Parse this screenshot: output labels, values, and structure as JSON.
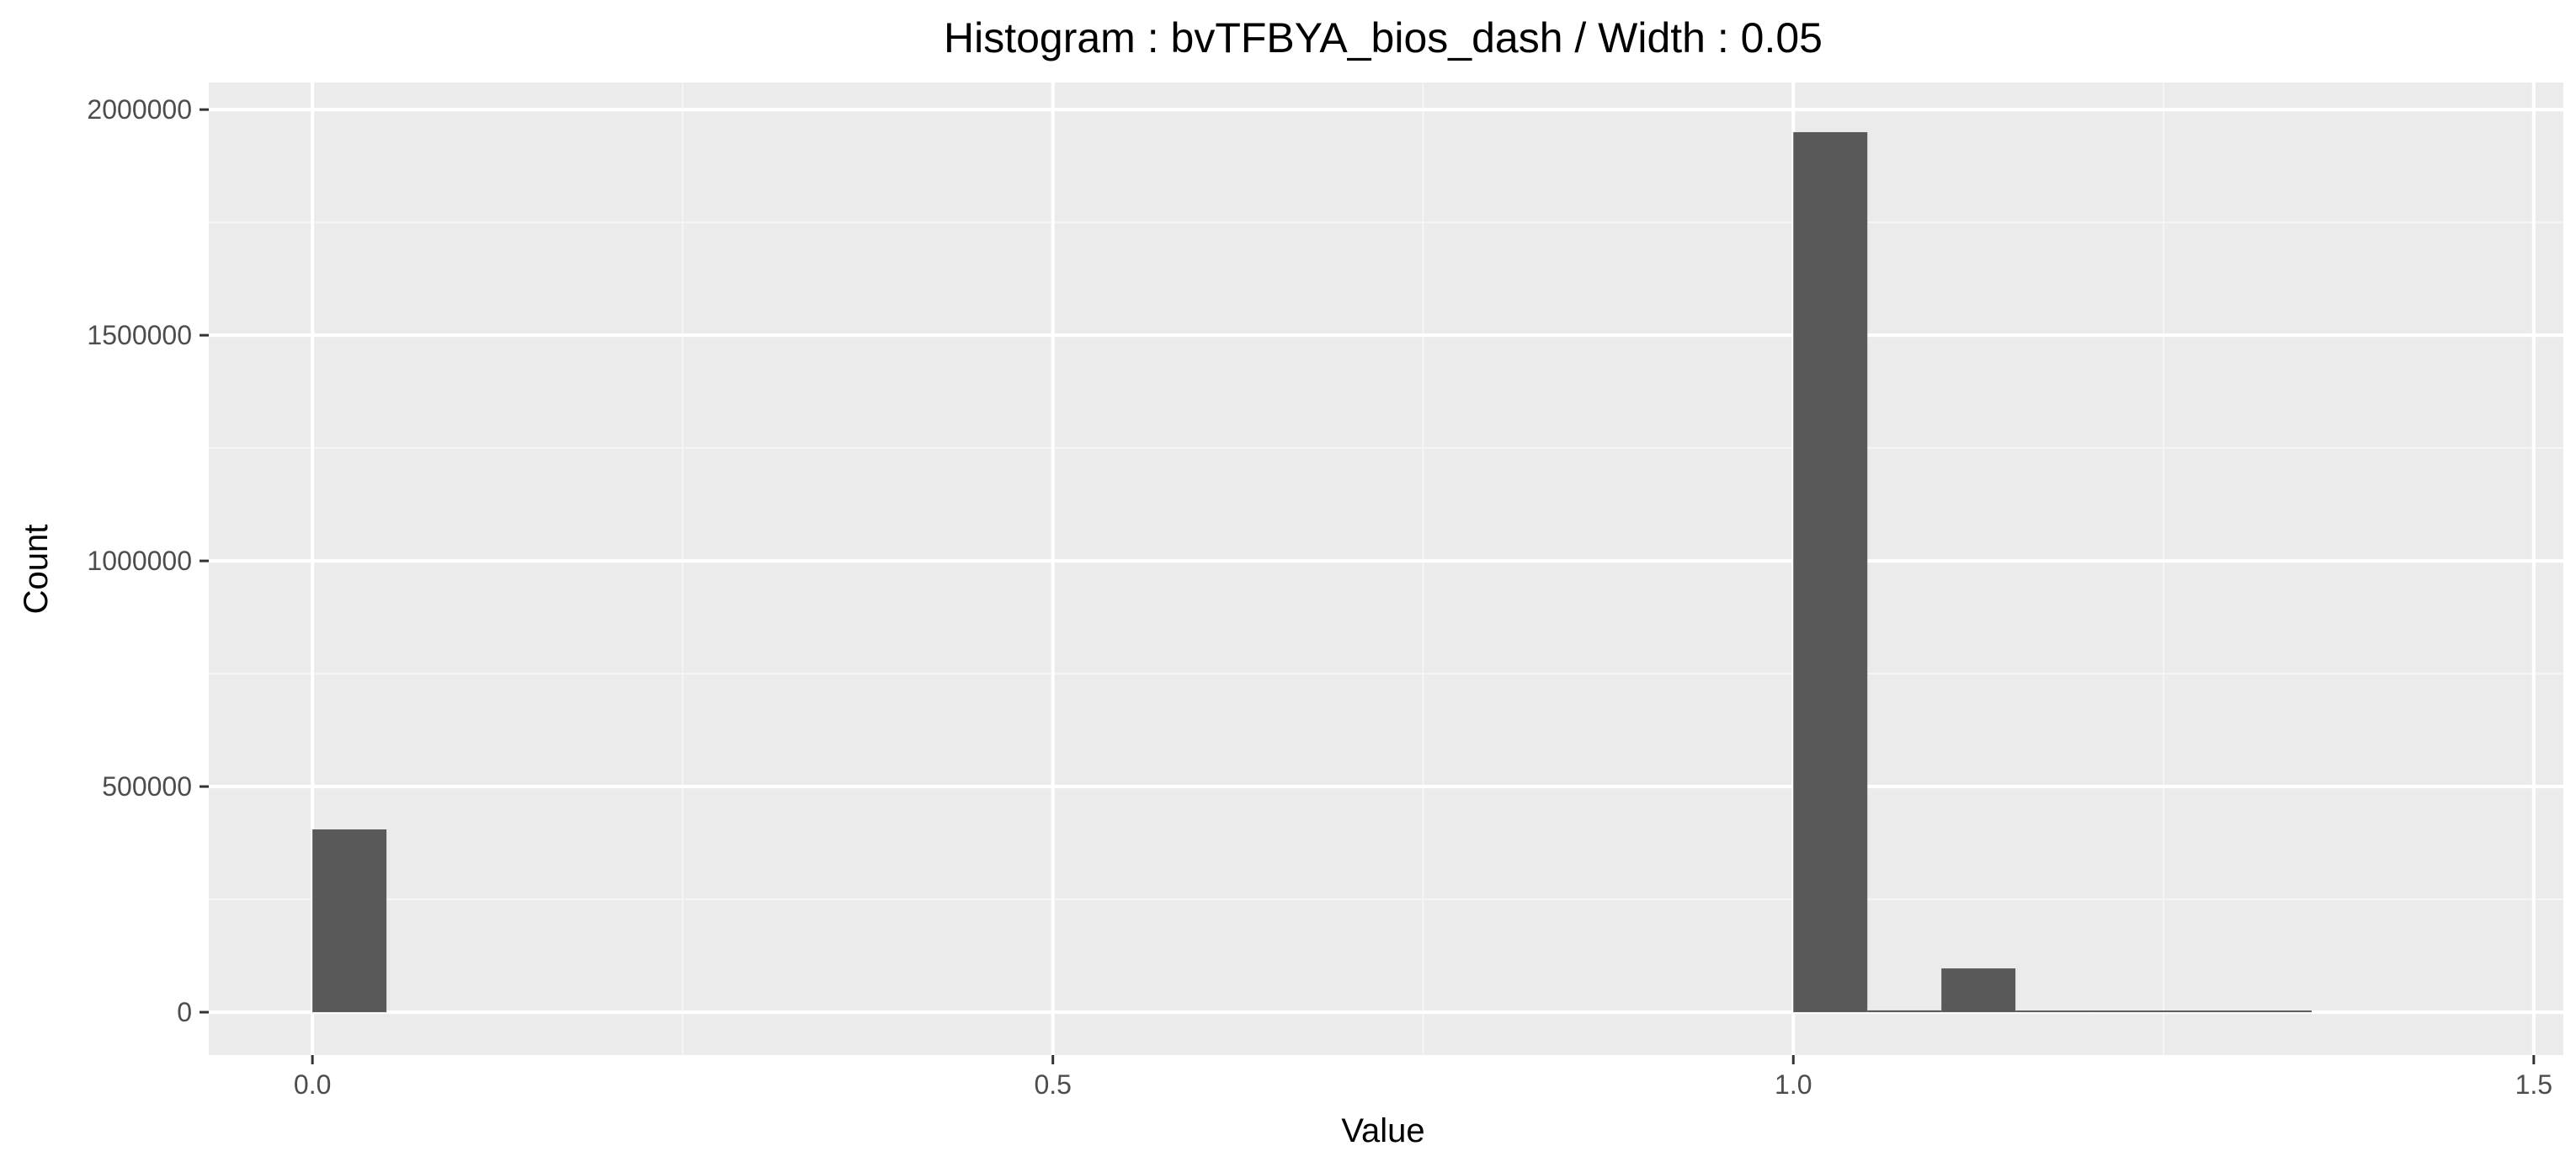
{
  "chart_data": {
    "type": "bar",
    "title": "Histogram : bvTFBYA_bios_dash / Width : 0.05",
    "xlabel": "Value",
    "ylabel": "Count",
    "xlim": [
      -0.07,
      1.52
    ],
    "ylim": [
      -95000,
      2060000
    ],
    "bin_width": 0.05,
    "x_ticks": [
      0.0,
      0.5,
      1.0,
      1.5
    ],
    "x_tick_labels": [
      "0.0",
      "0.5",
      "1.0",
      "1.5"
    ],
    "y_ticks": [
      0,
      500000,
      1000000,
      1500000,
      2000000
    ],
    "y_tick_labels": [
      "0",
      "500000",
      "1000000",
      "1500000",
      "2000000"
    ],
    "bins": [
      {
        "x_start": 0.0,
        "x_end": 0.05,
        "count": 405000
      },
      {
        "x_start": 1.0,
        "x_end": 1.05,
        "count": 1950000
      },
      {
        "x_start": 1.05,
        "x_end": 1.1,
        "count": 4000
      },
      {
        "x_start": 1.1,
        "x_end": 1.15,
        "count": 97000
      },
      {
        "x_start": 1.15,
        "x_end": 1.2,
        "count": 2000
      },
      {
        "x_start": 1.2,
        "x_end": 1.25,
        "count": 1000
      },
      {
        "x_start": 1.25,
        "x_end": 1.3,
        "count": 500
      },
      {
        "x_start": 1.3,
        "x_end": 1.35,
        "count": 500
      }
    ],
    "grid": true,
    "colors": {
      "panel_background": "#ebebeb",
      "grid_major": "#ffffff",
      "grid_minor": "#f5f5f5",
      "bar_fill": "#595959",
      "tick_mark": "#333333"
    }
  }
}
